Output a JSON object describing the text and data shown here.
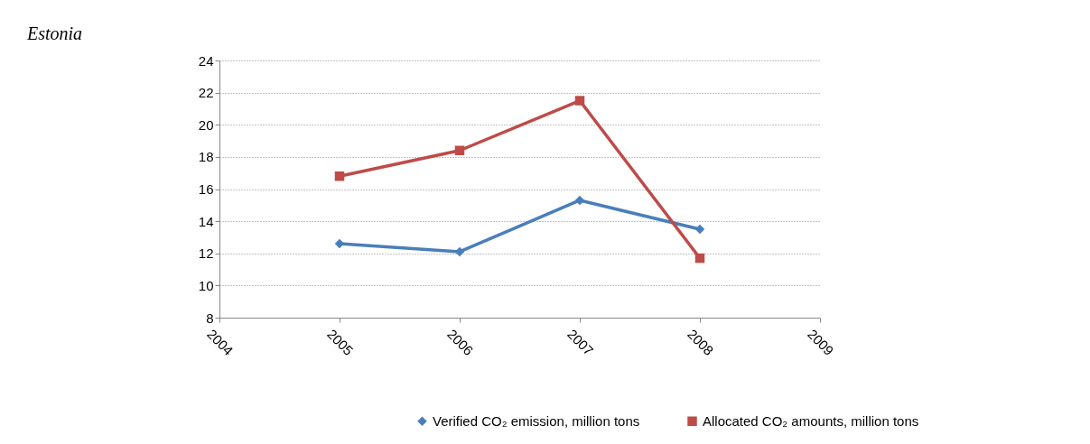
{
  "chart_data": {
    "type": "line",
    "title": "Estonia",
    "xlim": [
      2004,
      2009
    ],
    "xticks": [
      2004,
      2005,
      2006,
      2007,
      2008,
      2009
    ],
    "ylim": [
      8,
      24
    ],
    "yticks": [
      8,
      10,
      12,
      14,
      16,
      18,
      20,
      22,
      24
    ],
    "grid": "y",
    "legend": "bottom right",
    "line_style": "solid",
    "series": [
      {
        "name": "Verified CO₂ emission, million tons",
        "color": "#4a7ebb",
        "marker": "diamond",
        "x": [
          2005,
          2006,
          2007,
          2008
        ],
        "values": [
          12.6,
          12.1,
          15.3,
          13.5
        ]
      },
      {
        "name": "Allocated CO₂ amounts, million tons",
        "color": "#be4b48",
        "marker": "square",
        "x": [
          2005,
          2006,
          2007,
          2008
        ],
        "values": [
          16.8,
          18.4,
          21.5,
          11.7
        ]
      }
    ]
  }
}
